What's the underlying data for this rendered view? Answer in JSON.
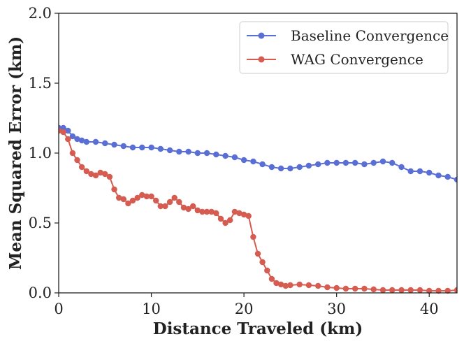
{
  "chart_data": {
    "type": "line",
    "xlabel": "Distance Traveled (km)",
    "ylabel": "Mean Squared Error (km)",
    "xlim": [
      0,
      43
    ],
    "ylim": [
      0,
      2.0
    ],
    "xticks": [
      "0",
      "10",
      "20",
      "30",
      "40"
    ],
    "xtick_values": [
      0,
      10,
      20,
      30,
      40
    ],
    "yticks": [
      "0.0",
      "0.5",
      "1.0",
      "1.5",
      "2.0"
    ],
    "ytick_values": [
      0,
      0.5,
      1.0,
      1.5,
      2.0
    ],
    "legend_position": "top-right",
    "grid": false,
    "series": [
      {
        "name": "Baseline Convergence",
        "color": "#5a6fd6",
        "x": [
          0,
          0.5,
          1.0,
          1.5,
          2.0,
          2.5,
          3,
          4,
          5,
          6,
          7,
          8,
          9,
          10,
          11,
          12,
          13,
          14,
          15,
          16,
          17,
          18,
          19,
          20,
          21,
          22,
          23,
          24,
          25,
          26,
          27,
          28,
          29,
          30,
          31,
          32,
          33,
          34,
          35,
          36,
          37,
          38,
          39,
          40,
          41,
          42,
          43
        ],
        "y": [
          1.18,
          1.18,
          1.16,
          1.12,
          1.1,
          1.09,
          1.08,
          1.08,
          1.07,
          1.06,
          1.05,
          1.04,
          1.04,
          1.04,
          1.03,
          1.02,
          1.01,
          1.01,
          1.0,
          1.0,
          0.99,
          0.98,
          0.97,
          0.95,
          0.94,
          0.92,
          0.9,
          0.89,
          0.89,
          0.9,
          0.91,
          0.92,
          0.93,
          0.93,
          0.93,
          0.93,
          0.92,
          0.93,
          0.94,
          0.93,
          0.9,
          0.87,
          0.87,
          0.86,
          0.84,
          0.83,
          0.81
        ]
      },
      {
        "name": "WAG Convergence",
        "color": "#d65b50",
        "x": [
          0,
          0.5,
          1.0,
          1.5,
          2.0,
          2.5,
          3.0,
          3.5,
          4.0,
          4.5,
          5.0,
          5.5,
          6.0,
          6.5,
          7.0,
          7.5,
          8.0,
          8.5,
          9.0,
          9.5,
          10.0,
          10.5,
          11.0,
          11.5,
          12.0,
          12.5,
          13.0,
          13.5,
          14.0,
          14.5,
          15.0,
          15.5,
          16.0,
          16.5,
          17.0,
          17.5,
          18.0,
          18.5,
          19.0,
          19.5,
          20.0,
          20.5,
          21.0,
          21.5,
          22.0,
          22.5,
          23.0,
          23.5,
          24.0,
          24.5,
          25,
          26,
          27,
          28,
          29,
          30,
          31,
          32,
          33,
          34,
          35,
          36,
          37,
          38,
          39,
          40,
          41,
          42,
          43
        ],
        "y": [
          1.16,
          1.15,
          1.1,
          1.0,
          0.95,
          0.9,
          0.87,
          0.85,
          0.84,
          0.86,
          0.85,
          0.83,
          0.74,
          0.68,
          0.67,
          0.64,
          0.66,
          0.68,
          0.7,
          0.69,
          0.69,
          0.66,
          0.62,
          0.62,
          0.65,
          0.68,
          0.65,
          0.61,
          0.6,
          0.62,
          0.59,
          0.58,
          0.58,
          0.58,
          0.57,
          0.53,
          0.5,
          0.52,
          0.58,
          0.57,
          0.56,
          0.55,
          0.4,
          0.28,
          0.22,
          0.16,
          0.1,
          0.07,
          0.06,
          0.05,
          0.055,
          0.06,
          0.055,
          0.05,
          0.04,
          0.035,
          0.03,
          0.03,
          0.03,
          0.025,
          0.02,
          0.02,
          0.02,
          0.02,
          0.02,
          0.015,
          0.015,
          0.015,
          0.02
        ]
      }
    ]
  }
}
